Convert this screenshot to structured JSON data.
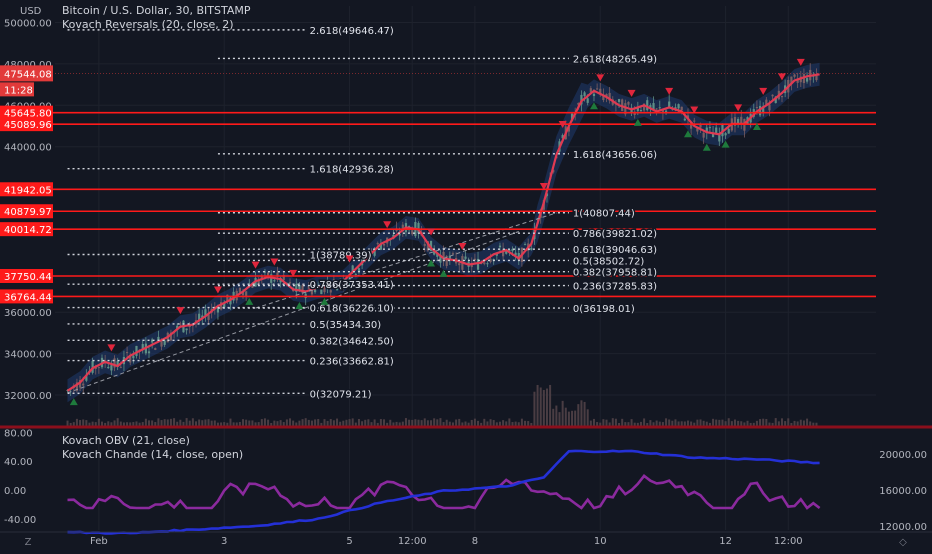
{
  "header": {
    "symbol_line": "Bitcoin / U.S. Dollar, 30, BITSTAMP",
    "indicator_line": "Kovach Reversals (20, close, 2)",
    "currency": "USD"
  },
  "price_axis": {
    "ticks": [
      {
        "value": 50000,
        "label": "50000.00"
      },
      {
        "value": 48000,
        "label": "48000.00"
      },
      {
        "value": 46000,
        "label": "46000.00"
      },
      {
        "value": 44000,
        "label": "44000.00"
      },
      {
        "value": 36000,
        "label": "36000.00"
      },
      {
        "value": 34000,
        "label": "34000.00"
      },
      {
        "value": 32000,
        "label": "32000.00"
      }
    ],
    "current_price": {
      "value": 47544.08,
      "label": "47544.08",
      "countdown": "11:28"
    },
    "level_tags": [
      {
        "value": 45645.8,
        "label": "45645.80"
      },
      {
        "value": 45089.96,
        "label": "45089.96"
      },
      {
        "value": 41942.05,
        "label": "41942.05"
      },
      {
        "value": 40879.97,
        "label": "40879.97"
      },
      {
        "value": 40014.72,
        "label": "40014.72"
      },
      {
        "value": 37750.44,
        "label": "37750.44"
      },
      {
        "value": 36764.44,
        "label": "36764.44"
      }
    ]
  },
  "fib_levels": [
    {
      "label": "2.618(49646.47)",
      "value": 49646.47,
      "set": "B"
    },
    {
      "label": "2.618(48265.49)",
      "value": 48265.49,
      "set": "A"
    },
    {
      "label": "1.618(43656.06)",
      "value": 43656.06,
      "set": "A"
    },
    {
      "label": "1.618(42936.28)",
      "value": 42936.28,
      "set": "B"
    },
    {
      "label": "1(40807.44)",
      "value": 40807.44,
      "set": "A"
    },
    {
      "label": "0.786(39821.02)",
      "value": 39821.02,
      "set": "A"
    },
    {
      "label": "0.618(39046.63)",
      "value": 39046.63,
      "set": "A"
    },
    {
      "label": "1(38789.39)",
      "value": 38789.39,
      "set": "B"
    },
    {
      "label": "0.5(38502.72)",
      "value": 38502.72,
      "set": "A"
    },
    {
      "label": "0.382(37958.81)",
      "value": 37958.81,
      "set": "A"
    },
    {
      "label": "0.786(37353.41)",
      "value": 37353.41,
      "set": "B"
    },
    {
      "label": "0.236(37285.83)",
      "value": 37285.83,
      "set": "A"
    },
    {
      "label": "0(36198.01)",
      "value": 36198.01,
      "set": "A"
    },
    {
      "label": "0.618(36226.10)",
      "value": 36226.1,
      "set": "B"
    },
    {
      "label": "0.5(35434.30)",
      "value": 35434.3,
      "set": "B"
    },
    {
      "label": "0.382(34642.50)",
      "value": 34642.5,
      "set": "B"
    },
    {
      "label": "0.236(33662.81)",
      "value": 33662.81,
      "set": "B"
    },
    {
      "label": "0(32079.21)",
      "value": 32079.21,
      "set": "B"
    }
  ],
  "lower_pane": {
    "line1": "Kovach OBV (21, close)",
    "line2": "Kovach Chande (14, close, open)",
    "left_ticks": [
      {
        "value": 80,
        "label": "80.00"
      },
      {
        "value": 40,
        "label": "40.00"
      },
      {
        "value": 0,
        "label": "0.00"
      },
      {
        "value": -40,
        "label": "-40.00"
      }
    ],
    "right_ticks": [
      {
        "value": 20000,
        "label": "20000.00"
      },
      {
        "value": 16000,
        "label": "16000.00"
      },
      {
        "value": 12000,
        "label": "12000.00"
      }
    ]
  },
  "time_axis": [
    {
      "t": 0.5,
      "label": "Feb"
    },
    {
      "t": 2.5,
      "label": "3"
    },
    {
      "t": 4.5,
      "label": "5"
    },
    {
      "t": 5.5,
      "label": "12:00"
    },
    {
      "t": 6.5,
      "label": "8"
    },
    {
      "t": 8.5,
      "label": "10"
    },
    {
      "t": 10.5,
      "label": "12"
    },
    {
      "t": 11.5,
      "label": "12:00"
    }
  ],
  "colors": {
    "background": "#131722",
    "ma_line": "#e03a52",
    "band": "#1f3a6e",
    "level_line": "#ff1a1a",
    "up_marker": "#1e7a3c",
    "down_marker": "#e0263c",
    "obv_line": "#2430d6",
    "chande_line": "#8b2a9e"
  },
  "chart_data": {
    "type": "line",
    "title": "Bitcoin / U.S. Dollar, 30, BITSTAMP",
    "ylim": [
      30500,
      50800
    ],
    "x_range": [
      -0.2,
      12.9
    ],
    "series": [
      {
        "name": "Kovach Reversals (20, close, 2)",
        "x": [
          0.0,
          0.2,
          0.4,
          0.6,
          0.8,
          1.0,
          1.2,
          1.4,
          1.6,
          1.8,
          2.0,
          2.2,
          2.4,
          2.6,
          2.8,
          3.0,
          3.2,
          3.4,
          3.6,
          3.8,
          4.0,
          4.2,
          4.4,
          4.6,
          4.8,
          5.0,
          5.2,
          5.4,
          5.6,
          5.8,
          6.0,
          6.2,
          6.4,
          6.6,
          6.8,
          7.0,
          7.2,
          7.4,
          7.6,
          7.8,
          8.0,
          8.2,
          8.4,
          8.6,
          8.8,
          9.0,
          9.2,
          9.4,
          9.6,
          9.8,
          10.0,
          10.2,
          10.4,
          10.6,
          10.8,
          11.0,
          11.2,
          11.4,
          11.6,
          11.8,
          12.0
        ],
        "y": [
          32200,
          32600,
          33300,
          33600,
          33400,
          33900,
          34200,
          34500,
          34800,
          35300,
          35400,
          35800,
          36300,
          36600,
          37000,
          37500,
          37700,
          37600,
          37100,
          37000,
          37200,
          37300,
          37500,
          38100,
          38700,
          39300,
          39600,
          40100,
          40000,
          39100,
          38600,
          38500,
          38300,
          38400,
          38800,
          39000,
          38600,
          39300,
          41300,
          43600,
          45000,
          46200,
          46700,
          46400,
          46000,
          45800,
          46000,
          45700,
          45900,
          45700,
          45000,
          44700,
          44600,
          45100,
          45100,
          45700,
          46100,
          46600,
          47200,
          47400,
          47500
        ]
      }
    ]
  }
}
